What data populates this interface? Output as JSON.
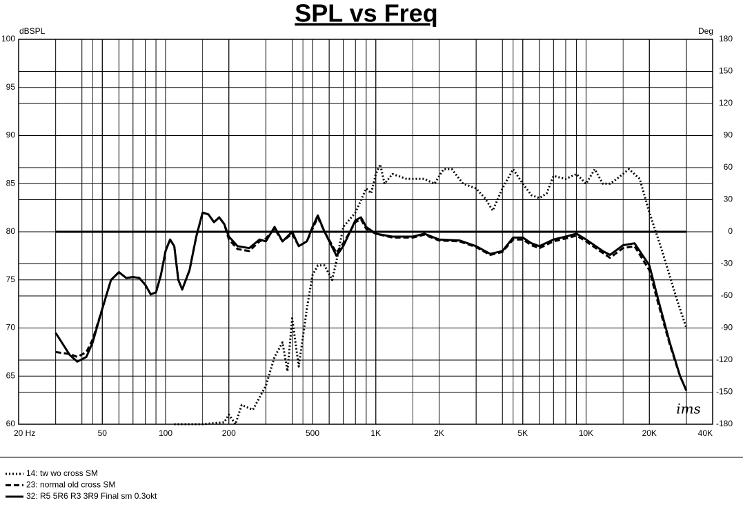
{
  "chart_data": {
    "type": "line",
    "title": "SPL vs Freq",
    "ylabel": "dBSPL",
    "y2label": "Deg",
    "annotation": "ims",
    "xscale": "log",
    "grid": true,
    "legend": "bottom",
    "xlim": [
      20,
      40000
    ],
    "xticks": [
      {
        "value": 20,
        "label": "20  Hz"
      },
      50,
      100,
      200,
      500,
      {
        "value": 1000,
        "label": "1K"
      },
      {
        "value": 2000,
        "label": "2K"
      },
      {
        "value": 5000,
        "label": "5K"
      },
      {
        "value": 10000,
        "label": "10K"
      },
      {
        "value": 20000,
        "label": "20K"
      },
      {
        "value": 40000,
        "label": "40K"
      }
    ],
    "ylim": [
      60,
      100
    ],
    "yticks": [
      60,
      65,
      70,
      75,
      80,
      85,
      90,
      95,
      100
    ],
    "y2lim": [
      -180,
      180
    ],
    "y2ticks": [
      -180,
      -150,
      -120,
      -90,
      -60,
      -30,
      0,
      30,
      60,
      90,
      120,
      150,
      180
    ],
    "series": [
      {
        "name": "14: tw wo cross SM",
        "color": "#000000",
        "style": "dotted",
        "x": [
          110,
          150,
          190,
          200,
          215,
          230,
          260,
          300,
          330,
          360,
          380,
          400,
          430,
          470,
          500,
          530,
          570,
          620,
          650,
          700,
          800,
          900,
          950,
          1000,
          1050,
          1100,
          1200,
          1400,
          1700,
          1900,
          2100,
          2300,
          2600,
          3000,
          3300,
          3600,
          4000,
          4500,
          5000,
          5500,
          6000,
          6500,
          7000,
          8000,
          9000,
          10000,
          11000,
          12000,
          13000,
          14000,
          16000,
          18000,
          20000,
          23000,
          27000,
          30000
        ],
        "values": [
          60,
          60,
          60.2,
          61,
          60,
          62,
          61.5,
          64,
          67,
          68.5,
          65.5,
          71,
          66,
          72,
          75.5,
          76.5,
          76.5,
          75,
          77,
          80.5,
          82,
          84.5,
          84,
          86,
          87,
          85,
          86,
          85.5,
          85.5,
          85,
          86.5,
          86.5,
          85,
          84.5,
          83.5,
          82.2,
          84.5,
          86.5,
          85,
          83.8,
          83.5,
          84,
          85.8,
          85.5,
          86,
          85,
          86.5,
          85,
          85,
          85.5,
          86.5,
          85.5,
          82,
          78,
          73,
          70
        ]
      },
      {
        "name": "23: normal old cross SM",
        "color": "#000000",
        "style": "dashed",
        "x": [
          30,
          35,
          38,
          42,
          45,
          50,
          55,
          60,
          65,
          70,
          75,
          80,
          85,
          90,
          95,
          100,
          105,
          110,
          115,
          120,
          130,
          140,
          150,
          160,
          170,
          180,
          190,
          200,
          220,
          250,
          280,
          300,
          330,
          360,
          400,
          430,
          470,
          500,
          530,
          570,
          650,
          700,
          800,
          850,
          900,
          1000,
          1200,
          1500,
          1700,
          2000,
          2500,
          3000,
          3500,
          4000,
          4500,
          5000,
          5500,
          6000,
          7000,
          8000,
          9000,
          10000,
          12000,
          13000,
          15000,
          17000,
          20000,
          22000,
          25000,
          28000,
          30000
        ],
        "values": [
          67.5,
          67.3,
          67,
          67.5,
          68.8,
          72,
          75,
          75.8,
          75.2,
          75.3,
          75.2,
          74.5,
          73.5,
          73.7,
          75.5,
          78,
          79.2,
          78.5,
          75,
          74,
          76,
          79.5,
          82,
          81.8,
          81,
          81.5,
          80.8,
          79.2,
          78.2,
          78,
          79,
          79.3,
          80.3,
          79,
          79.8,
          78.5,
          79,
          80.3,
          81.5,
          80,
          77.8,
          78.8,
          81,
          81.3,
          80.3,
          79.8,
          79.4,
          79.4,
          79.7,
          79.1,
          79,
          78.4,
          77.6,
          77.9,
          79.2,
          79.2,
          78.6,
          78.3,
          79,
          79.3,
          79.6,
          79,
          77.8,
          77.3,
          78.3,
          78.5,
          76,
          72.6,
          68.3,
          65,
          63.5
        ]
      },
      {
        "name": "32: R5 5R6  R3 3R9 Final sm 0.3okt",
        "color": "#000000",
        "style": "solid",
        "x": [
          30,
          35,
          38,
          42,
          45,
          50,
          55,
          60,
          65,
          70,
          75,
          80,
          85,
          90,
          95,
          100,
          105,
          110,
          115,
          120,
          130,
          140,
          150,
          160,
          170,
          180,
          190,
          200,
          220,
          250,
          280,
          300,
          330,
          360,
          400,
          430,
          470,
          500,
          530,
          570,
          650,
          700,
          800,
          850,
          900,
          1000,
          1200,
          1500,
          1700,
          2000,
          2500,
          3000,
          3500,
          4000,
          4500,
          5000,
          5500,
          6000,
          7000,
          8000,
          9000,
          10000,
          12000,
          13000,
          15000,
          17000,
          20000,
          22000,
          25000,
          28000,
          30000
        ],
        "values": [
          69.5,
          67.2,
          66.5,
          67,
          68.5,
          72,
          75,
          75.8,
          75.2,
          75.3,
          75.2,
          74.5,
          73.5,
          73.7,
          75.5,
          78,
          79.2,
          78.5,
          75,
          74,
          76,
          79.5,
          82,
          81.8,
          81,
          81.5,
          80.8,
          79.5,
          78.5,
          78.3,
          79.2,
          79,
          80.5,
          79,
          80,
          78.5,
          79,
          80.5,
          81.7,
          80,
          77.5,
          78.5,
          81.2,
          81.5,
          80.5,
          79.8,
          79.5,
          79.5,
          79.8,
          79.2,
          79.1,
          78.5,
          77.7,
          78,
          79.4,
          79.4,
          78.8,
          78.5,
          79.2,
          79.5,
          79.8,
          79.2,
          78,
          77.6,
          78.6,
          78.8,
          76.5,
          73,
          68.5,
          65,
          63.5
        ]
      },
      {
        "color": "#000000",
        "style": "solid",
        "axis": "y2",
        "x": [
          30,
          30000
        ],
        "values": [
          0,
          0
        ]
      }
    ]
  }
}
